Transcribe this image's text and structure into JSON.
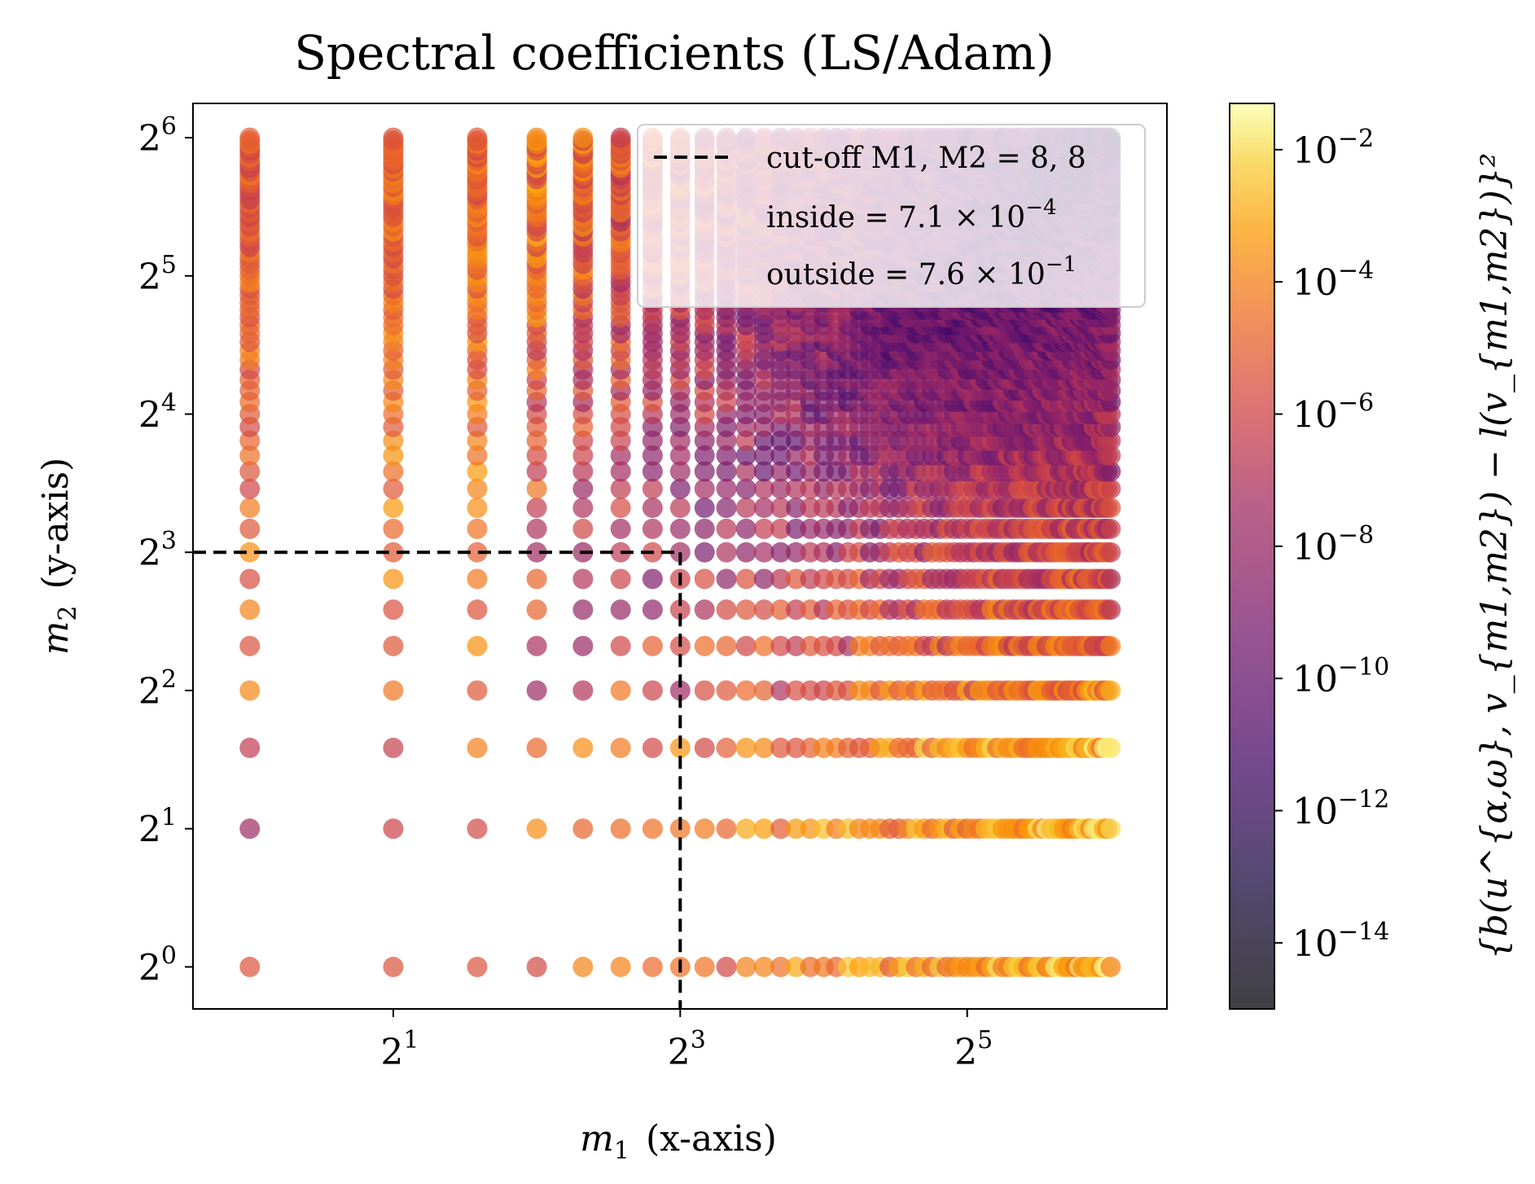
{
  "chart_data": {
    "type": "scatter",
    "title": "Spectral coefficients (LS/Adam)",
    "x": {
      "label_var": "m",
      "label_sub": "1",
      "label_rest": "(x-axis)",
      "scale": "log2",
      "ticks": [
        {
          "base": "2",
          "exp": "1",
          "value": 2
        },
        {
          "base": "2",
          "exp": "3",
          "value": 8
        },
        {
          "base": "2",
          "exp": "5",
          "value": 32
        }
      ],
      "range": [
        0.76,
        84
      ]
    },
    "y": {
      "label_var": "m",
      "label_sub": "2",
      "label_rest": "(y-axis)",
      "scale": "log2",
      "ticks": [
        {
          "base": "2",
          "exp": "0",
          "value": 1
        },
        {
          "base": "2",
          "exp": "1",
          "value": 2
        },
        {
          "base": "2",
          "exp": "2",
          "value": 4
        },
        {
          "base": "2",
          "exp": "3",
          "value": 8
        },
        {
          "base": "2",
          "exp": "4",
          "value": 16
        },
        {
          "base": "2",
          "exp": "5",
          "value": 32
        },
        {
          "base": "2",
          "exp": "6",
          "value": 64
        }
      ],
      "range": [
        0.81,
        76
      ]
    },
    "cutoff": {
      "M1": 8,
      "M2": 8
    },
    "legend": {
      "placement": "top-right",
      "cutoff_label": "cut-off M1, M2 = 8, 8",
      "inside_label": "inside = 7.1 × 10",
      "inside_exp": "−4",
      "outside_label": "outside = 7.6 × 10",
      "outside_exp": "−1"
    },
    "colorbar": {
      "label": "{b(u^{α,ω}, v_{m1,m2}) − l(v_{m1,m2})}²",
      "scale": "log10",
      "range_exp": [
        -15,
        -1.3
      ],
      "colormap": "inferno",
      "ticks": [
        {
          "base": "10",
          "exp": "−2",
          "value": -2
        },
        {
          "base": "10",
          "exp": "−4",
          "value": -4
        },
        {
          "base": "10",
          "exp": "−6",
          "value": -6
        },
        {
          "base": "10",
          "exp": "−8",
          "value": -8
        },
        {
          "base": "10",
          "exp": "−10",
          "value": -10
        },
        {
          "base": "10",
          "exp": "−12",
          "value": -12
        },
        {
          "base": "10",
          "exp": "−14",
          "value": -14
        }
      ]
    },
    "grid": false,
    "alpha": 0.7,
    "m_max": 64
  }
}
